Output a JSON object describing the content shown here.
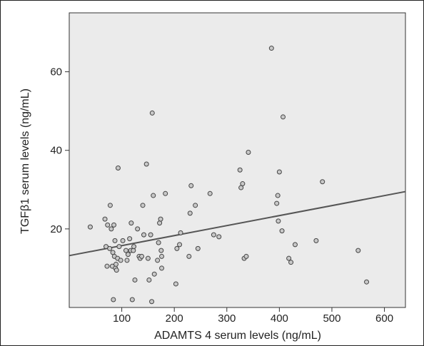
{
  "chart_data": {
    "type": "scatter",
    "title": "",
    "xlabel": "ADAMTS 4 serum levels (ng/mL)",
    "ylabel": "TGFβ1 serum levels (ng/mL)",
    "xlim": [
      0,
      640
    ],
    "ylim": [
      0,
      75
    ],
    "xticks": [
      100,
      200,
      300,
      400,
      500,
      600
    ],
    "yticks": [
      20,
      40,
      60
    ],
    "grid": false,
    "legend": "none",
    "colors": {
      "plot_bg": "#ebebeb",
      "marker_fill": "#c8c8c8",
      "marker_stroke": "#444444",
      "fit_line": "#555555",
      "axis": "#333333"
    },
    "points": [
      [
        40,
        20.5
      ],
      [
        68,
        22.5
      ],
      [
        70,
        15.5
      ],
      [
        72,
        10.5
      ],
      [
        73,
        21
      ],
      [
        77,
        15
      ],
      [
        78,
        26
      ],
      [
        80,
        20
      ],
      [
        82,
        10.5
      ],
      [
        83,
        14
      ],
      [
        84,
        2
      ],
      [
        85,
        21
      ],
      [
        86,
        13
      ],
      [
        87,
        17
      ],
      [
        88,
        10
      ],
      [
        89,
        11
      ],
      [
        90,
        9.5
      ],
      [
        92,
        12.5
      ],
      [
        93,
        35.5
      ],
      [
        95,
        15.5
      ],
      [
        98,
        12
      ],
      [
        102,
        17
      ],
      [
        108,
        14.5
      ],
      [
        110,
        12
      ],
      [
        112,
        13.5
      ],
      [
        115,
        17.5
      ],
      [
        117,
        14.5
      ],
      [
        118,
        21.5
      ],
      [
        120,
        2
      ],
      [
        122,
        14.5
      ],
      [
        123,
        15.5
      ],
      [
        125,
        7
      ],
      [
        130,
        20
      ],
      [
        133,
        13
      ],
      [
        135,
        12.5
      ],
      [
        138,
        13
      ],
      [
        140,
        26
      ],
      [
        142,
        18.5
      ],
      [
        147,
        36.5
      ],
      [
        150,
        12.5
      ],
      [
        152,
        7
      ],
      [
        155,
        18.5
      ],
      [
        157,
        1.5
      ],
      [
        158,
        49.5
      ],
      [
        160,
        28.5
      ],
      [
        162,
        8.5
      ],
      [
        168,
        12
      ],
      [
        170,
        16.5
      ],
      [
        172,
        21.5
      ],
      [
        174,
        22.5
      ],
      [
        175,
        14.5
      ],
      [
        176,
        13
      ],
      [
        176,
        10
      ],
      [
        183,
        29
      ],
      [
        203,
        6
      ],
      [
        205,
        15
      ],
      [
        210,
        16
      ],
      [
        212,
        19
      ],
      [
        228,
        13
      ],
      [
        230,
        24
      ],
      [
        232,
        31
      ],
      [
        240,
        26
      ],
      [
        245,
        15
      ],
      [
        268,
        29
      ],
      [
        275,
        18.5
      ],
      [
        285,
        18
      ],
      [
        325,
        35
      ],
      [
        327,
        30.5
      ],
      [
        330,
        31.5
      ],
      [
        333,
        12.5
      ],
      [
        337,
        13
      ],
      [
        341,
        39.5
      ],
      [
        385,
        66
      ],
      [
        395,
        26.5
      ],
      [
        397,
        28.5
      ],
      [
        398,
        22
      ],
      [
        400,
        34.5
      ],
      [
        405,
        19.5
      ],
      [
        407,
        48.5
      ],
      [
        418,
        12.5
      ],
      [
        422,
        11.5
      ],
      [
        430,
        16
      ],
      [
        470,
        17
      ],
      [
        482,
        32
      ],
      [
        550,
        14.5
      ],
      [
        566,
        6.5
      ]
    ],
    "fit_line": {
      "x": [
        0,
        640
      ],
      "y": [
        13.2,
        29.5
      ]
    }
  },
  "header_mark": "–"
}
